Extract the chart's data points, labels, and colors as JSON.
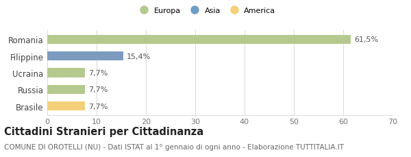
{
  "categories": [
    "Romania",
    "Filippine",
    "Ucraina",
    "Russia",
    "Brasile"
  ],
  "values": [
    61.5,
    15.4,
    7.7,
    7.7,
    7.7
  ],
  "labels": [
    "61,5%",
    "15,4%",
    "7,7%",
    "7,7%",
    "7,7%"
  ],
  "colors": [
    "#b5c98e",
    "#7b9bbf",
    "#b5c98e",
    "#b5c98e",
    "#f5d07a"
  ],
  "legend": [
    {
      "label": "Europa",
      "color": "#b5c98e"
    },
    {
      "label": "Asia",
      "color": "#6f9ec4"
    },
    {
      "label": "America",
      "color": "#f5d07a"
    }
  ],
  "xlim": [
    0,
    70
  ],
  "xticks": [
    0,
    10,
    20,
    30,
    40,
    50,
    60,
    70
  ],
  "title": "Cittadini Stranieri per Cittadinanza",
  "subtitle": "COMUNE DI OROTELLI (NU) - Dati ISTAT al 1° gennaio di ogni anno - Elaborazione TUTTITALIA.IT",
  "grid_color": "#dddddd",
  "bg_color": "#ffffff",
  "bar_height": 0.55,
  "label_fontsize": 8,
  "tick_fontsize": 8,
  "category_fontsize": 8.5,
  "title_fontsize": 10.5,
  "subtitle_fontsize": 7.5
}
